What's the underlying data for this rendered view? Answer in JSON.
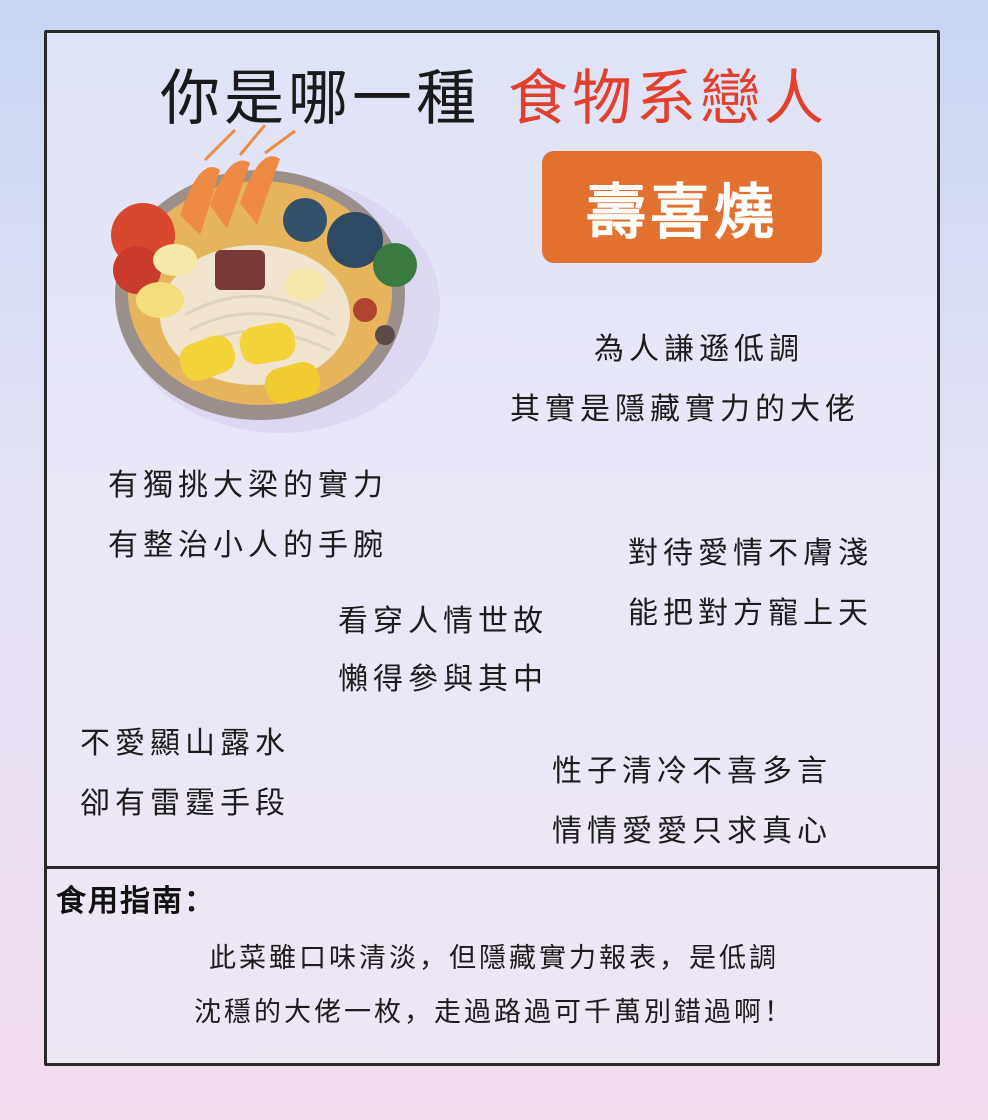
{
  "title": {
    "part1": "你是哪一種",
    "part2": "食物系戀人"
  },
  "food_name": "壽喜燒",
  "colors": {
    "accent_red": "#e2402d",
    "badge_orange": "#e2702e",
    "border": "#2a2a2a"
  },
  "image": {
    "icon": "sukiyaki-pot-illustration"
  },
  "traits": {
    "t1": {
      "line1": "為人謙遜低調",
      "line2": "其實是隱藏實力的大佬"
    },
    "t2": {
      "line1": "有獨挑大梁的實力",
      "line2": "有整治小人的手腕"
    },
    "t3": {
      "line1": "對待愛情不膚淺",
      "line2": "能把對方寵上天"
    },
    "t4": {
      "line1": "看穿人情世故",
      "line2": "懶得參與其中"
    },
    "t5": {
      "line1": "不愛顯山露水",
      "line2": "卻有雷霆手段"
    },
    "t6": {
      "line1": "性子清冷不喜多言",
      "line2": "情情愛愛只求真心"
    }
  },
  "guide": {
    "heading": "食用指南：",
    "line1": "此菜雖口味清淡，但隱藏實力報表，是低調",
    "line2": "沈穩的大佬一枚，走過路過可千萬別錯過啊！"
  }
}
